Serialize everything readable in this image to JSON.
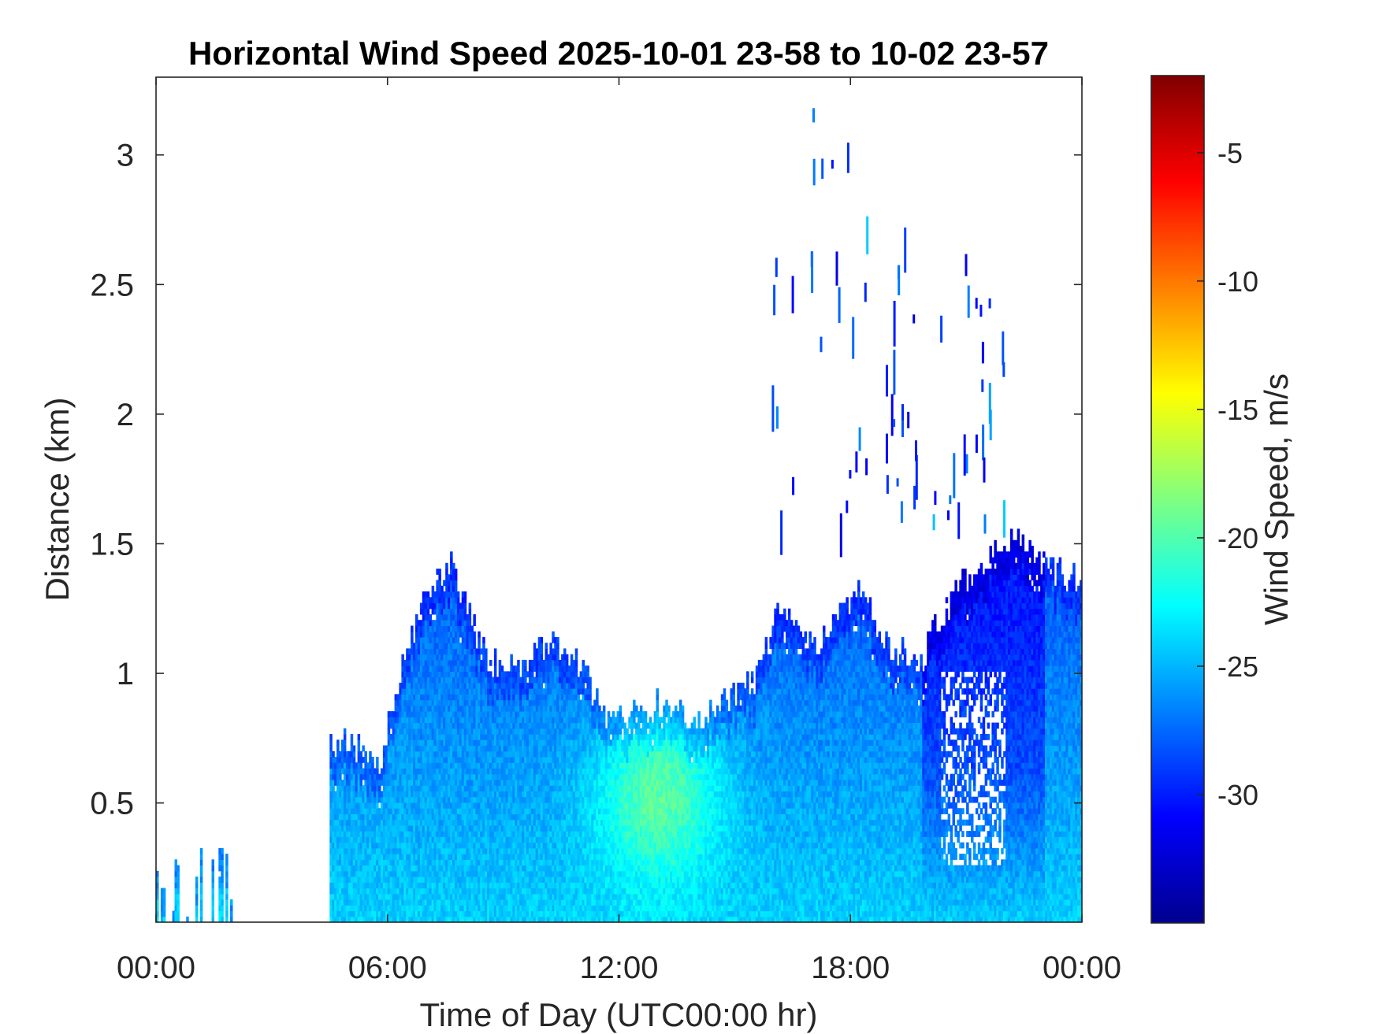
{
  "chart_data": {
    "type": "heatmap",
    "title": "Horizontal Wind Speed 2025-10-01 23-58 to 10-02 23-57",
    "xlabel": "Time of Day (UTC00:00 hr)",
    "ylabel": "Distance (km)",
    "xlim": [
      0,
      24
    ],
    "ylim": [
      0.04,
      3.3
    ],
    "x_ticks": [
      0,
      6,
      12,
      18,
      24
    ],
    "x_tick_labels": [
      "00:00",
      "06:00",
      "12:00",
      "18:00",
      "00:00"
    ],
    "y_ticks": [
      0.5,
      1,
      1.5,
      2,
      2.5,
      3
    ],
    "y_tick_labels": [
      "0.5",
      "1",
      "1.5",
      "2",
      "2.5",
      "3"
    ],
    "colorbar": {
      "label": "Wind Speed, m/s",
      "colormap": "jet",
      "range": [
        -35,
        -2
      ],
      "ticks": [
        -30,
        -25,
        -20,
        -15,
        -10,
        -5
      ],
      "tick_labels": [
        "-30",
        "-25",
        "-20",
        "-15",
        "-10",
        "-5"
      ]
    },
    "grid": false,
    "data_summary": {
      "coverage_top_km_by_hour": [
        [
          0.0,
          0.35
        ],
        [
          0.5,
          0.3
        ],
        [
          1.0,
          0.12
        ],
        [
          2.0,
          0.08
        ],
        [
          4.5,
          0.72
        ],
        [
          5.0,
          0.72
        ],
        [
          5.8,
          0.62
        ],
        [
          6.2,
          0.95
        ],
        [
          7.0,
          1.3
        ],
        [
          7.6,
          1.42
        ],
        [
          8.5,
          1.05
        ],
        [
          9.3,
          1.0
        ],
        [
          10.2,
          1.1
        ],
        [
          11.0,
          1.05
        ],
        [
          11.5,
          0.82
        ],
        [
          12.4,
          0.83
        ],
        [
          13.2,
          0.88
        ],
        [
          14.0,
          0.8
        ],
        [
          14.7,
          0.9
        ],
        [
          15.5,
          0.95
        ],
        [
          16.1,
          1.25
        ],
        [
          17.0,
          1.1
        ],
        [
          18.2,
          1.3
        ],
        [
          19.0,
          1.1
        ],
        [
          19.8,
          1.02
        ],
        [
          20.3,
          1.22
        ],
        [
          21.0,
          1.35
        ],
        [
          22.0,
          1.52
        ],
        [
          23.0,
          1.4
        ],
        [
          24.0,
          1.35
        ]
      ],
      "upper_streaks_hour_range": [
        15.9,
        22.2
      ],
      "upper_streaks_top_km": 3.25,
      "core_max_speed_hour": 13.0,
      "core_max_speed_ms": -18
    }
  }
}
